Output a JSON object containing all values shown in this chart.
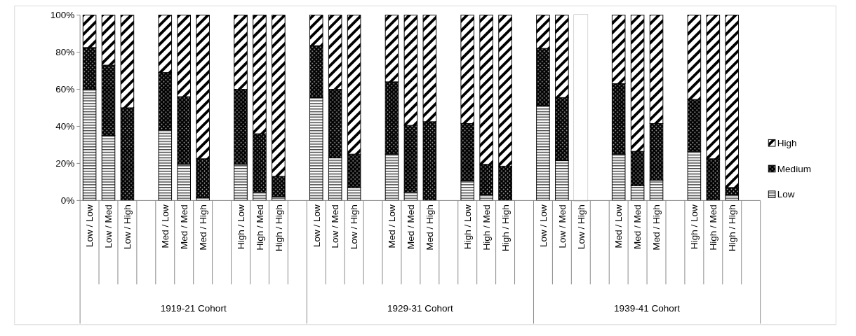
{
  "chart_data": {
    "type": "bar",
    "stacked": true,
    "categories": [
      "Low / Low",
      "Low / Med",
      "Low / High",
      null,
      "Med / Low",
      "Med / Med",
      "Med / High",
      null,
      "High / Low",
      "High / Med",
      "High / High",
      null,
      "Low / Low",
      "Low / Med",
      "Low / High",
      null,
      "Med / Low",
      "Med / Med",
      "Med / High",
      null,
      "High / Low",
      "High / Med",
      "High / High",
      null,
      "Low / Low",
      "Low / Med",
      "Low / High",
      null,
      "Med / Low",
      "Med / Med",
      "Med / High",
      null,
      "High / Low",
      "High / Med",
      "High / High",
      null
    ],
    "series": [
      {
        "name": "Low",
        "color": "#000000",
        "values": [
          60,
          35,
          0,
          null,
          38,
          19.5,
          1.5,
          null,
          19.5,
          4.5,
          2,
          null,
          55.5,
          23,
          7,
          null,
          25,
          4.5,
          0,
          null,
          10.5,
          3,
          0,
          null,
          51,
          21.5,
          0,
          null,
          25,
          8,
          11,
          null,
          26.5,
          0,
          3,
          null
        ]
      },
      {
        "name": "Medium",
        "color": "#000000",
        "values": [
          22.5,
          38,
          50,
          null,
          31,
          36.5,
          21,
          null,
          40.5,
          31.5,
          11,
          null,
          28,
          37,
          18,
          null,
          39,
          36,
          42.5,
          null,
          31,
          16.5,
          18.5,
          null,
          31,
          34,
          0,
          null,
          38,
          18.5,
          30.5,
          null,
          28,
          22.5,
          4,
          null
        ]
      },
      {
        "name": "High",
        "color": "#000000",
        "colors": [
          "#000000",
          "#000000",
          "#000000",
          null,
          "#000000",
          "#000000",
          "#000000",
          null,
          "#000000",
          "#000000",
          "#000000",
          null,
          "#000000",
          "#000000",
          "#000000",
          null,
          "#000000",
          "#000000",
          "#000000",
          null,
          "#000000",
          "#000000",
          "#000000",
          null,
          "#000000",
          "#000000",
          "#ffffff",
          null,
          "#000000",
          "#000000",
          "#000000",
          null,
          "#000000",
          "#000000",
          "#000000",
          null
        ],
        "values": [
          17.5,
          27,
          50,
          null,
          31,
          44,
          77.5,
          null,
          40,
          64,
          87,
          null,
          16.5,
          40,
          75,
          null,
          36,
          59.5,
          57.5,
          null,
          58.5,
          80.5,
          81.5,
          null,
          18,
          44.5,
          100,
          null,
          37,
          73.5,
          58.5,
          null,
          45.5,
          77.5,
          93,
          null
        ]
      }
    ],
    "ylim": [
      0,
      100
    ],
    "yticks": [
      {
        "value": 0,
        "label": "0%"
      },
      {
        "value": 20,
        "label": "20%"
      },
      {
        "value": 40,
        "label": "40%"
      },
      {
        "value": 60,
        "label": "60%"
      },
      {
        "value": 80,
        "label": "80%"
      },
      {
        "value": 100,
        "label": "100%"
      }
    ],
    "annotations": [
      "1919-21 Cohort",
      "1929-31 Cohort",
      "1939-41 Cohort"
    ],
    "legend": "right"
  }
}
